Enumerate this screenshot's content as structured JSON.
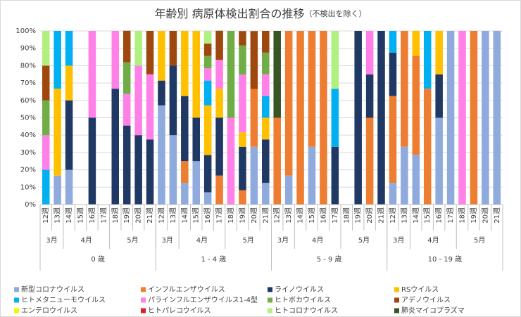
{
  "chart_data": {
    "type": "stacked_bar_100",
    "title": "年齢別 病原体検出割合の推移",
    "subtitle": "（不検出を除く）",
    "categories": [
      {
        "week": "12週",
        "month": "3月",
        "age": "0 歳"
      },
      {
        "week": "13週",
        "month": "3月",
        "age": "0 歳"
      },
      {
        "week": "14週",
        "month": "4月",
        "age": "0 歳"
      },
      {
        "week": "15週",
        "month": "4月",
        "age": "0 歳"
      },
      {
        "week": "16週",
        "month": "4月",
        "age": "0 歳"
      },
      {
        "week": "17週",
        "month": "4月",
        "age": "0 歳"
      },
      {
        "week": "18週",
        "month": "5月",
        "age": "0 歳"
      },
      {
        "week": "19週",
        "month": "5月",
        "age": "0 歳"
      },
      {
        "week": "20週",
        "month": "5月",
        "age": "0 歳"
      },
      {
        "week": "21週",
        "month": "5月",
        "age": "0 歳"
      },
      {
        "week": "12週",
        "month": "3月",
        "age": "1 - 4 歳"
      },
      {
        "week": "13週",
        "month": "3月",
        "age": "1 - 4 歳"
      },
      {
        "week": "14週",
        "month": "4月",
        "age": "1 - 4 歳"
      },
      {
        "week": "15週",
        "month": "4月",
        "age": "1 - 4 歳"
      },
      {
        "week": "16週",
        "month": "4月",
        "age": "1 - 4 歳"
      },
      {
        "week": "17週",
        "month": "4月",
        "age": "1 - 4 歳"
      },
      {
        "week": "18週",
        "month": "5月",
        "age": "1 - 4 歳"
      },
      {
        "week": "19週",
        "month": "5月",
        "age": "1 - 4 歳"
      },
      {
        "week": "20週",
        "month": "5月",
        "age": "1 - 4 歳"
      },
      {
        "week": "21週",
        "month": "5月",
        "age": "1 - 4 歳"
      },
      {
        "week": "12週",
        "month": "3月",
        "age": "5 - 9 歳"
      },
      {
        "week": "13週",
        "month": "3月",
        "age": "5 - 9 歳"
      },
      {
        "week": "14週",
        "month": "4月",
        "age": "5 - 9 歳"
      },
      {
        "week": "15週",
        "month": "4月",
        "age": "5 - 9 歳"
      },
      {
        "week": "16週",
        "month": "4月",
        "age": "5 - 9 歳"
      },
      {
        "week": "17週",
        "month": "4月",
        "age": "5 - 9 歳"
      },
      {
        "week": "18週",
        "month": "5月",
        "age": "5 - 9 歳"
      },
      {
        "week": "19週",
        "month": "5月",
        "age": "5 - 9 歳"
      },
      {
        "week": "20週",
        "month": "5月",
        "age": "5 - 9 歳"
      },
      {
        "week": "21週",
        "month": "5月",
        "age": "5 - 9 歳"
      },
      {
        "week": "12週",
        "month": "3月",
        "age": "10 - 19 歳"
      },
      {
        "week": "13週",
        "month": "3月",
        "age": "10 - 19 歳"
      },
      {
        "week": "14週",
        "month": "4月",
        "age": "10 - 19 歳"
      },
      {
        "week": "15週",
        "month": "4月",
        "age": "10 - 19 歳"
      },
      {
        "week": "16週",
        "month": "4月",
        "age": "10 - 19 歳"
      },
      {
        "week": "17週",
        "month": "4月",
        "age": "10 - 19 歳"
      },
      {
        "week": "18週",
        "month": "5月",
        "age": "10 - 19 歳"
      },
      {
        "week": "19週",
        "month": "5月",
        "age": "10 - 19 歳"
      },
      {
        "week": "20週",
        "month": "5月",
        "age": "10 - 19 歳"
      },
      {
        "week": "21週",
        "month": "5月",
        "age": "10 - 19 歳"
      }
    ],
    "series": [
      {
        "name": "新型コロナウイルス",
        "color": "#8faadc",
        "values": [
          0,
          16.7,
          20,
          0,
          0,
          0,
          0,
          0,
          0,
          0,
          57.1,
          40,
          12.5,
          25,
          7.1,
          0,
          0,
          0,
          33.3,
          12.5,
          0,
          16.7,
          0,
          33.3,
          0,
          0,
          0,
          0,
          0,
          0,
          12.5,
          33.3,
          28.6,
          0,
          50,
          100,
          0,
          0,
          100,
          100
        ]
      },
      {
        "name": "インフルエンザウイルス",
        "color": "#ed7d31",
        "values": [
          0,
          0,
          0,
          0,
          0,
          0,
          0,
          0,
          0,
          0,
          0,
          0,
          12.5,
          0,
          0,
          16.7,
          0,
          8.3,
          33.3,
          0,
          50,
          83.3,
          100,
          66.7,
          100,
          0,
          0,
          0,
          50,
          0,
          50,
          66.7,
          57.1,
          66.7,
          0,
          0,
          0,
          100,
          0,
          0
        ]
      },
      {
        "name": "ライノウイルス",
        "color": "#203864",
        "values": [
          0,
          0,
          40,
          0,
          50,
          0,
          66.7,
          45.5,
          40,
          37.5,
          14.3,
          40,
          37.5,
          25,
          21.4,
          33.3,
          0,
          25,
          0,
          25,
          0,
          0,
          0,
          0,
          0,
          33.3,
          0,
          100,
          25,
          100,
          25,
          0,
          0,
          0,
          25,
          0,
          0,
          0,
          0,
          0
        ]
      },
      {
        "name": "RSウイルス",
        "color": "#ffc000",
        "values": [
          0,
          50,
          20,
          0,
          0,
          0,
          0,
          0,
          0,
          0,
          28.6,
          0,
          37.5,
          50,
          28.6,
          16.7,
          0,
          8.3,
          0,
          12.5,
          0,
          0,
          0,
          0,
          0,
          0,
          0,
          0,
          0,
          0,
          0,
          0,
          14.3,
          0,
          25,
          0,
          0,
          0,
          0,
          0
        ]
      },
      {
        "name": "ヒトメタニューモウイルス",
        "color": "#00b0f0",
        "values": [
          20,
          33.3,
          20,
          0,
          0,
          0,
          0,
          0,
          0,
          0,
          0,
          0,
          0,
          0,
          14.3,
          0,
          0,
          0,
          0,
          12.5,
          0,
          0,
          0,
          0,
          0,
          33.3,
          0,
          0,
          0,
          0,
          12.5,
          0,
          0,
          33.3,
          0,
          0,
          0,
          0,
          0,
          0
        ]
      },
      {
        "name": "パラインフルエンザウイルス1-4型",
        "color": "#ff80e6",
        "values": [
          20,
          0,
          0,
          0,
          50,
          0,
          33.3,
          18.2,
          40,
          37.5,
          0,
          0,
          0,
          0,
          7.1,
          16.7,
          50,
          33.3,
          0,
          12.5,
          0,
          0,
          0,
          0,
          0,
          0,
          0,
          0,
          25,
          0,
          0,
          0,
          0,
          0,
          0,
          0,
          100,
          0,
          0,
          0
        ]
      },
      {
        "name": "ヒトボカウイルス",
        "color": "#70ad47",
        "values": [
          20,
          0,
          0,
          0,
          0,
          0,
          0,
          18.2,
          0,
          0,
          0,
          0,
          0,
          0,
          7.1,
          0,
          50,
          16.7,
          0,
          12.5,
          0,
          0,
          0,
          0,
          0,
          0,
          0,
          0,
          0,
          0,
          0,
          0,
          0,
          0,
          0,
          0,
          0,
          0,
          0,
          0
        ]
      },
      {
        "name": "アデノウイルス",
        "color": "#9e480e",
        "values": [
          20,
          0,
          0,
          0,
          0,
          0,
          0,
          18.2,
          0,
          25,
          0,
          20,
          0,
          0,
          7.1,
          16.7,
          0,
          8.3,
          33.3,
          12.5,
          0,
          0,
          0,
          0,
          0,
          0,
          0,
          0,
          0,
          0,
          0,
          0,
          0,
          0,
          0,
          0,
          0,
          0,
          0,
          0
        ]
      },
      {
        "name": "エンテロウイルス",
        "color": "#f5f500",
        "values": [
          0,
          0,
          0,
          0,
          0,
          0,
          0,
          0,
          0,
          0,
          0,
          0,
          0,
          0,
          0,
          0,
          0,
          0,
          0,
          0,
          0,
          0,
          0,
          0,
          0,
          0,
          0,
          0,
          0,
          0,
          0,
          0,
          0,
          0,
          0,
          0,
          0,
          0,
          0,
          0
        ]
      },
      {
        "name": "ヒトパレコウイルス",
        "color": "#e02020",
        "values": [
          0,
          0,
          0,
          0,
          0,
          0,
          0,
          0,
          0,
          0,
          0,
          0,
          0,
          0,
          0,
          0,
          0,
          0,
          0,
          0,
          0,
          0,
          0,
          0,
          0,
          0,
          0,
          0,
          0,
          0,
          0,
          0,
          0,
          0,
          0,
          0,
          0,
          0,
          0,
          0
        ]
      },
      {
        "name": "ヒトコロナウイルス",
        "color": "#b0f080",
        "values": [
          20,
          0,
          0,
          0,
          0,
          0,
          0,
          0,
          20,
          0,
          0,
          0,
          0,
          0,
          7.1,
          0,
          0,
          0,
          0,
          0,
          0,
          0,
          0,
          0,
          0,
          33.3,
          0,
          0,
          0,
          0,
          0,
          0,
          0,
          0,
          0,
          0,
          0,
          0,
          0,
          0
        ]
      },
      {
        "name": "肺炎マイコプラズマ",
        "color": "#375623",
        "values": [
          0,
          0,
          0,
          0,
          0,
          0,
          0,
          0,
          0,
          0,
          0,
          0,
          0,
          0,
          0,
          0,
          0,
          0,
          0,
          0,
          50,
          0,
          0,
          0,
          0,
          0,
          0,
          0,
          0,
          0,
          0,
          0,
          0,
          0,
          0,
          0,
          0,
          0,
          0,
          0
        ]
      }
    ],
    "ylim": [
      0,
      100
    ],
    "yticks": [
      {
        "value": 0,
        "label": "0%"
      },
      {
        "value": 10,
        "label": "10%"
      },
      {
        "value": 20,
        "label": "20%"
      },
      {
        "value": 30,
        "label": "30%"
      },
      {
        "value": 40,
        "label": "40%"
      },
      {
        "value": 50,
        "label": "50%"
      },
      {
        "value": 60,
        "label": "60%"
      },
      {
        "value": 70,
        "label": "70%"
      },
      {
        "value": 80,
        "label": "80%"
      },
      {
        "value": 90,
        "label": "90%"
      },
      {
        "value": 100,
        "label": "100%"
      }
    ],
    "grid": true,
    "legend": "bottom"
  }
}
